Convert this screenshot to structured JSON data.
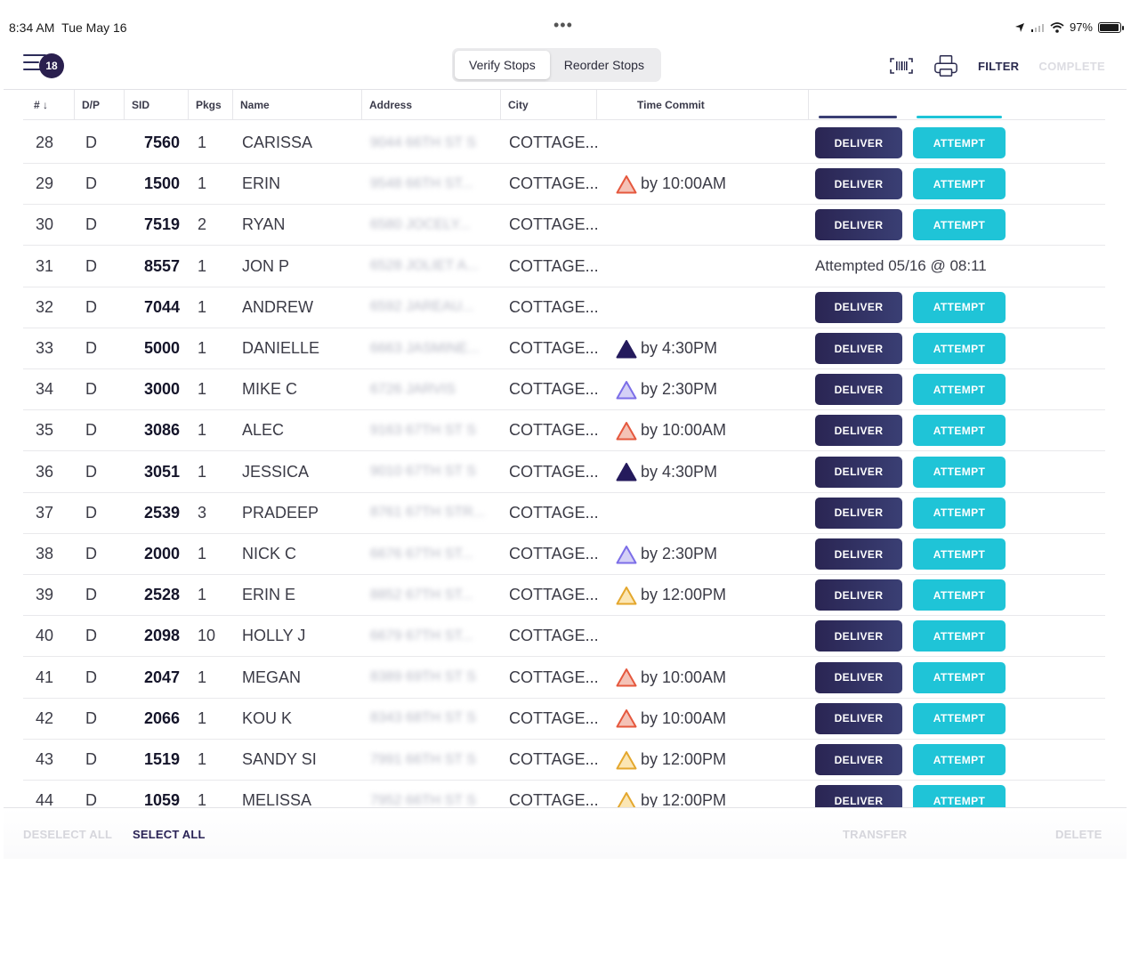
{
  "status_bar": {
    "time": "8:34 AM",
    "date": "Tue May 16",
    "dots": "•••",
    "battery_pct": "97%",
    "battery_level": 0.97
  },
  "toolbar": {
    "menu_badge": "18",
    "segments": [
      "Verify Stops",
      "Reorder Stops"
    ],
    "active_segment": "Verify Stops",
    "filter_label": "FILTER",
    "complete_label": "COMPLETE"
  },
  "table": {
    "headers": {
      "num": "# ↓",
      "dp": "D/P",
      "sid": "SID",
      "pkgs": "Pkgs",
      "name": "Name",
      "address": "Address",
      "city": "City",
      "time_commit": "Time Commit"
    },
    "rows": [
      {
        "num": "28",
        "dp": "D",
        "sid": "7560",
        "pkgs": "1",
        "name": "CARISSA",
        "address": "9044 66TH ST S",
        "city": "COTTAGE...",
        "time": "",
        "note": ""
      },
      {
        "num": "29",
        "dp": "D",
        "sid": "1500",
        "pkgs": "1",
        "name": "ERIN",
        "address": "9548 66TH ST...",
        "city": "COTTAGE...",
        "time": "by 10:00AM",
        "note": ""
      },
      {
        "num": "30",
        "dp": "D",
        "sid": "7519",
        "pkgs": "2",
        "name": "RYAN",
        "address": "6580 JOCELY...",
        "city": "COTTAGE...",
        "time": "",
        "note": ""
      },
      {
        "num": "31",
        "dp": "D",
        "sid": "8557",
        "pkgs": "1",
        "name": "JON P",
        "address": "6528 JOLIET A...",
        "city": "COTTAGE...",
        "time": "",
        "note": "Attempted 05/16 @ 08:11"
      },
      {
        "num": "32",
        "dp": "D",
        "sid": "7044",
        "pkgs": "1",
        "name": "ANDREW",
        "address": "6592 JAREAU...",
        "city": "COTTAGE...",
        "time": "",
        "note": ""
      },
      {
        "num": "33",
        "dp": "D",
        "sid": "5000",
        "pkgs": "1",
        "name": "DANIELLE",
        "address": "6663 JASMINE...",
        "city": "COTTAGE...",
        "time": "by 4:30PM",
        "note": ""
      },
      {
        "num": "34",
        "dp": "D",
        "sid": "3000",
        "pkgs": "1",
        "name": "MIKE C",
        "address": "6726 JARVIS",
        "city": "COTTAGE...",
        "time": "by 2:30PM",
        "note": ""
      },
      {
        "num": "35",
        "dp": "D",
        "sid": "3086",
        "pkgs": "1",
        "name": "ALEC",
        "address": "9163 67TH ST S",
        "city": "COTTAGE...",
        "time": "by 10:00AM",
        "note": ""
      },
      {
        "num": "36",
        "dp": "D",
        "sid": "3051",
        "pkgs": "1",
        "name": "JESSICA",
        "address": "9010 67TH ST S",
        "city": "COTTAGE...",
        "time": "by 4:30PM",
        "note": ""
      },
      {
        "num": "37",
        "dp": "D",
        "sid": "2539",
        "pkgs": "3",
        "name": "PRADEEP",
        "address": "8761 67TH STR...",
        "city": "COTTAGE...",
        "time": "",
        "note": ""
      },
      {
        "num": "38",
        "dp": "D",
        "sid": "2000",
        "pkgs": "1",
        "name": "NICK C",
        "address": "6676 67TH ST...",
        "city": "COTTAGE...",
        "time": "by 2:30PM",
        "note": ""
      },
      {
        "num": "39",
        "dp": "D",
        "sid": "2528",
        "pkgs": "1",
        "name": "ERIN E",
        "address": "8852 67TH ST...",
        "city": "COTTAGE...",
        "time": "by 12:00PM",
        "note": ""
      },
      {
        "num": "40",
        "dp": "D",
        "sid": "2098",
        "pkgs": "10",
        "name": "HOLLY J",
        "address": "6679 67TH ST...",
        "city": "COTTAGE...",
        "time": "",
        "note": ""
      },
      {
        "num": "41",
        "dp": "D",
        "sid": "2047",
        "pkgs": "1",
        "name": "MEGAN",
        "address": "8389 69TH ST S",
        "city": "COTTAGE...",
        "time": "by 10:00AM",
        "note": ""
      },
      {
        "num": "42",
        "dp": "D",
        "sid": "2066",
        "pkgs": "1",
        "name": "KOU K",
        "address": "8343 68TH ST S",
        "city": "COTTAGE...",
        "time": "by 10:00AM",
        "note": ""
      },
      {
        "num": "43",
        "dp": "D",
        "sid": "1519",
        "pkgs": "1",
        "name": "SANDY SI",
        "address": "7991 66TH ST S",
        "city": "COTTAGE...",
        "time": "by 12:00PM",
        "note": ""
      },
      {
        "num": "44",
        "dp": "D",
        "sid": "1059",
        "pkgs": "1",
        "name": "MELISSA",
        "address": "7952 66TH ST S",
        "city": "COTTAGE...",
        "time": "by 12:00PM",
        "note": ""
      }
    ],
    "deliver_label": "DELIVER",
    "attempt_label": "ATTEMPT"
  },
  "time_icons": {
    "by 10:00AM": {
      "fill": "#f4c2b6",
      "stroke": "#e5583e"
    },
    "by 4:30PM": {
      "fill": "#241a5c",
      "stroke": "#241a5c"
    },
    "by 2:30PM": {
      "fill": "#d4d0f6",
      "stroke": "#7c6ee8"
    },
    "by 12:00PM": {
      "fill": "#fbe6b4",
      "stroke": "#e4a72d"
    }
  },
  "footer": {
    "deselect_all": "DESELECT ALL",
    "select_all": "SELECT ALL",
    "transfer": "TRANSFER",
    "delete": "DELETE"
  },
  "colors": {
    "deliver": "#2a2553",
    "attempt": "#1fc4d7",
    "badge": "#2a1f4e"
  }
}
